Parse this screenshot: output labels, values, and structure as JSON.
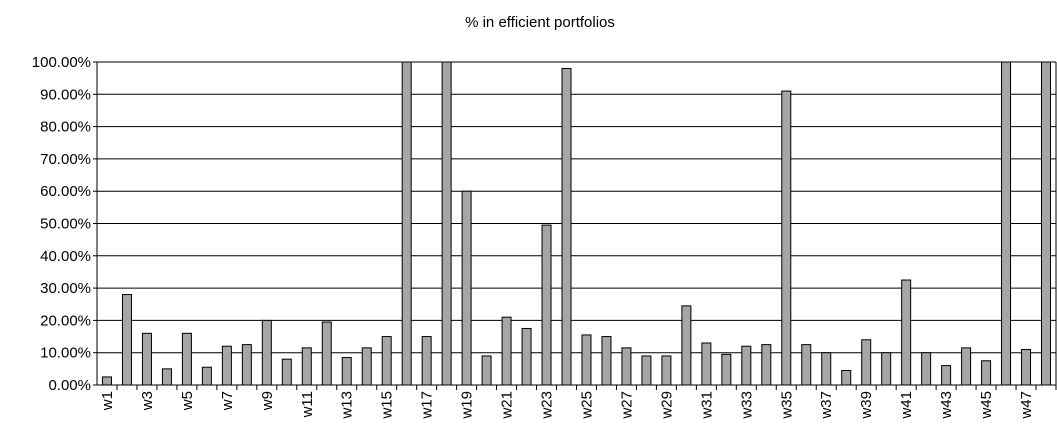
{
  "chart_data": {
    "type": "bar",
    "title": "% in efficient portfolios",
    "categories": [
      "w1",
      null,
      "w3",
      null,
      "w5",
      null,
      "w7",
      null,
      "w9",
      null,
      "w11",
      null,
      "w13",
      null,
      "w15",
      null,
      "w17",
      null,
      "w19",
      null,
      "w21",
      null,
      "w23",
      null,
      "w25",
      null,
      "w27",
      null,
      "w29",
      null,
      "w31",
      null,
      "w33",
      null,
      "w35",
      null,
      "w37",
      null,
      "w39",
      null,
      "w41",
      null,
      "w43",
      null,
      "w45",
      null,
      "w47",
      null
    ],
    "values": [
      2.5,
      28,
      16,
      5,
      16,
      5.5,
      12,
      12.5,
      20,
      8,
      11.5,
      19.5,
      8.5,
      11.5,
      15,
      100,
      15,
      100,
      60,
      9,
      21,
      17.5,
      49.5,
      98,
      15.5,
      15,
      11.5,
      9,
      9,
      24.5,
      13,
      9.5,
      12,
      12.5,
      91,
      12.5,
      10,
      4.5,
      14,
      10,
      32.5,
      10,
      6,
      11.5,
      7.5,
      100,
      11,
      100
    ],
    "color": "#a6a6a6",
    "ylim": [
      0,
      100
    ],
    "yticks": [
      {
        "value": 0,
        "label": "0.00%"
      },
      {
        "value": 10,
        "label": "10.00%"
      },
      {
        "value": 20,
        "label": "20.00%"
      },
      {
        "value": 30,
        "label": "30.00%"
      },
      {
        "value": 40,
        "label": "40.00%"
      },
      {
        "value": 50,
        "label": "50.00%"
      },
      {
        "value": 60,
        "label": "60.00%"
      },
      {
        "value": 70,
        "label": "70.00%"
      },
      {
        "value": 80,
        "label": "80.00%"
      },
      {
        "value": 90,
        "label": "90.00%"
      },
      {
        "value": 100,
        "label": "100.00%"
      }
    ],
    "grid": true
  }
}
